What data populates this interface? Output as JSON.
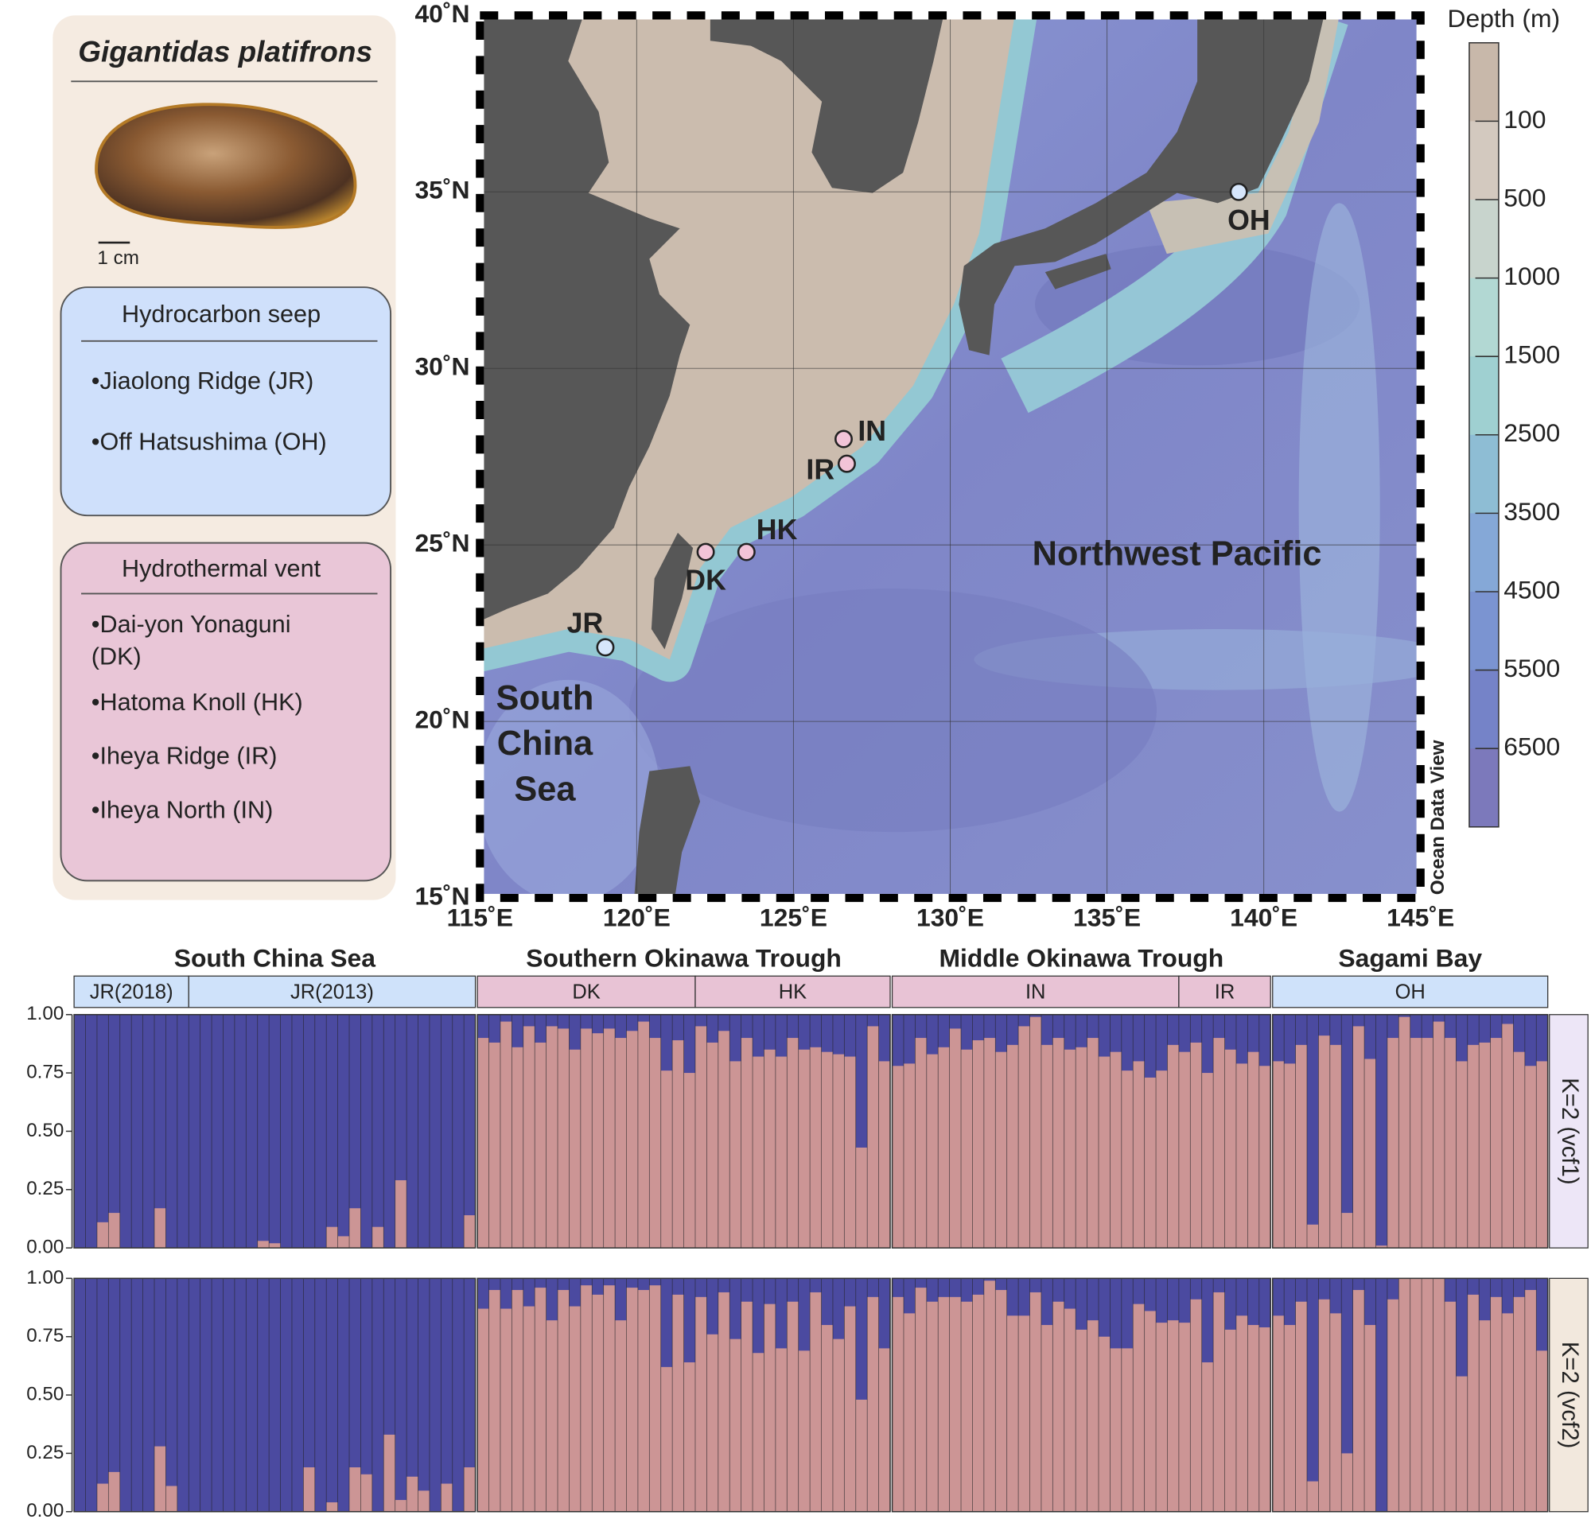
{
  "legend_panel": {
    "species": "Gigantidas platifrons",
    "scale_label": "1 cm",
    "groups": [
      {
        "title": "Hydrocarbon seep",
        "color": "#cfe0fb",
        "items": [
          "•Jiaolong Ridge (JR)",
          "•Off Hatsushima (OH)"
        ]
      },
      {
        "title": "Hydrothermal vent",
        "color": "#e9c6d7",
        "items": [
          "•Dai-yon Yonaguni (DK)",
          "•Hatoma Knoll (HK)",
          "•Iheya Ridge (IR)",
          "•Iheya North (IN)"
        ]
      }
    ]
  },
  "chart_data": [
    {
      "type": "map",
      "xlim": [
        115,
        145
      ],
      "ylim": [
        15,
        40
      ],
      "xticks": [
        {
          "value": 115,
          "label": "115˚E"
        },
        {
          "value": 120,
          "label": "120˚E"
        },
        {
          "value": 125,
          "label": "125˚E"
        },
        {
          "value": 130,
          "label": "130˚E"
        },
        {
          "value": 135,
          "label": "135˚E"
        },
        {
          "value": 140,
          "label": "140˚E"
        },
        {
          "value": 145,
          "label": "145˚E"
        }
      ],
      "yticks": [
        {
          "value": 15,
          "label": "15˚N"
        },
        {
          "value": 20,
          "label": "20˚N"
        },
        {
          "value": 25,
          "label": "25˚N"
        },
        {
          "value": 30,
          "label": "30˚N"
        },
        {
          "value": 35,
          "label": "35˚N"
        },
        {
          "value": 40,
          "label": "40˚N"
        }
      ],
      "grid": true,
      "sites": [
        {
          "label": "JR",
          "lon": 119.0,
          "lat": 22.1,
          "color": "#d6e6fb"
        },
        {
          "label": "DK",
          "lon": 122.2,
          "lat": 24.8,
          "color": "#f2c4d8"
        },
        {
          "label": "HK",
          "lon": 123.5,
          "lat": 24.8,
          "color": "#f2c4d8"
        },
        {
          "label": "IR",
          "lon": 126.7,
          "lat": 27.3,
          "color": "#f2c4d8"
        },
        {
          "label": "IN",
          "lon": 126.6,
          "lat": 28.0,
          "color": "#f2c4d8"
        },
        {
          "label": "OH",
          "lon": 139.2,
          "lat": 35.0,
          "color": "#d6e6fb"
        }
      ],
      "annotations": [
        {
          "lines": [
            "South",
            "China",
            "Sea"
          ]
        },
        {
          "lines": [
            "Northwest Pacific"
          ]
        }
      ],
      "credit": "Ocean Data View",
      "colorbar": {
        "title": "Depth (m)",
        "ticks": [
          100,
          500,
          1000,
          1500,
          2500,
          3500,
          4500,
          5500,
          6500
        ],
        "colors": [
          "#c8b8aa",
          "#d3c9bf",
          "#c8d4cd",
          "#b2d8d3",
          "#9fd0d1",
          "#8ebdd4",
          "#85a8d7",
          "#7b94d1",
          "#7583c8",
          "#7c79bb"
        ]
      }
    },
    {
      "type": "structure",
      "ylim": [
        0,
        1
      ],
      "yticks": [
        {
          "value": 0,
          "label": "0.00"
        },
        0.25,
        {
          "value": 0.5,
          "label": "0.50"
        },
        0.75,
        {
          "value": 1,
          "label": "1.00"
        }
      ],
      "base_color": "#4b4aa0",
      "bar_color": "#cc9595",
      "regions": [
        {
          "name": "South China Sea",
          "populations": [
            {
              "label": "JR(2018)",
              "color": "#cfe2fa"
            },
            {
              "label": "JR(2013)",
              "color": "#cfe2fa"
            }
          ]
        },
        {
          "name": "Southern Okinawa Trough",
          "populations": [
            {
              "label": "DK",
              "color": "#e8c3d5"
            },
            {
              "label": "HK",
              "color": "#e8c3d5"
            }
          ]
        },
        {
          "name": "Middle Okinawa Trough",
          "populations": [
            {
              "label": "IN",
              "color": "#e8c3d5"
            },
            {
              "label": "IR",
              "color": "#e8c3d5"
            }
          ]
        },
        {
          "name": "Sagami Bay",
          "populations": [
            {
              "label": "OH",
              "color": "#cfe2fa"
            }
          ]
        }
      ],
      "panels": [
        {
          "label": "K=2 (vcf1)",
          "color": "#ede6f7",
          "values": [
            [
              0,
              0,
              0.11,
              0.15,
              0,
              0,
              0,
              0.17,
              0,
              0
            ],
            [
              0,
              0,
              0,
              0,
              0,
              0,
              0.03,
              0.02,
              0,
              0,
              0,
              0,
              0.09,
              0.05,
              0.17,
              0,
              0.09,
              0,
              0.29,
              0,
              0,
              0,
              0,
              0,
              0.14
            ],
            [
              0.9,
              0.88,
              0.97,
              0.86,
              0.95,
              0.88,
              0.95,
              0.94,
              0.85,
              0.94,
              0.92,
              0.94,
              0.9,
              0.93,
              0.97,
              0.9,
              0.76,
              0.89,
              0.75
            ],
            [
              0.95,
              0.88,
              0.93,
              0.8,
              0.9,
              0.82,
              0.85,
              0.82,
              0.9,
              0.85,
              0.86,
              0.84,
              0.83,
              0.82,
              0.43,
              0.95,
              0.8
            ],
            [
              0.78,
              0.79,
              0.9,
              0.83,
              0.86,
              0.94,
              0.85,
              0.89,
              0.9,
              0.84,
              0.87,
              0.95,
              0.99,
              0.87,
              0.9,
              0.85,
              0.86,
              0.9,
              0.82,
              0.84,
              0.76,
              0.8,
              0.73,
              0.76,
              0.87
            ],
            [
              0.84,
              0.88,
              0.75,
              0.9,
              0.85,
              0.79,
              0.84,
              0.78
            ],
            [
              0.8,
              0.79,
              0.87,
              0.1,
              0.91,
              0.87,
              0.15,
              0.95,
              0.81,
              0.01,
              0.9,
              0.99,
              0.9,
              0.9,
              0.97,
              0.9,
              0.8,
              0.87,
              0.88,
              0.9,
              0.96,
              0.84,
              0.78,
              0.8
            ]
          ]
        },
        {
          "label": "K=2 (vcf2)",
          "color": "#f2e8dd",
          "values": [
            [
              0,
              0,
              0.12,
              0.17,
              0,
              0,
              0,
              0.28,
              0.11,
              0
            ],
            [
              0,
              0,
              0,
              0,
              0,
              0,
              0,
              0,
              0,
              0,
              0.19,
              0,
              0.04,
              0,
              0.19,
              0.16,
              0,
              0.33,
              0.05,
              0.15,
              0.09,
              0,
              0.12,
              0,
              0.19
            ],
            [
              0.87,
              0.95,
              0.87,
              0.95,
              0.88,
              0.96,
              0.82,
              0.95,
              0.88,
              0.97,
              0.93,
              0.97,
              0.82,
              0.96,
              0.95,
              0.97,
              0.62,
              0.93,
              0.64
            ],
            [
              0.92,
              0.76,
              0.94,
              0.74,
              0.9,
              0.68,
              0.89,
              0.7,
              0.9,
              0.69,
              0.94,
              0.8,
              0.74,
              0.88,
              0.48,
              0.92,
              0.7
            ],
            [
              0.92,
              0.85,
              0.96,
              0.9,
              0.92,
              0.92,
              0.9,
              0.93,
              0.99,
              0.95,
              0.84,
              0.84,
              0.94,
              0.8,
              0.9,
              0.87,
              0.78,
              0.82,
              0.75,
              0.7,
              0.7,
              0.89,
              0.86,
              0.81,
              0.82
            ],
            [
              0.81,
              0.91,
              0.64,
              0.94,
              0.78,
              0.84,
              0.8,
              0.79
            ],
            [
              0.84,
              0.8,
              0.9,
              0.13,
              0.91,
              0.85,
              0.25,
              0.95,
              0.8,
              0,
              0.91,
              1,
              1,
              1,
              1,
              0.9,
              0.58,
              0.93,
              0.82,
              0.92,
              0.85,
              0.92,
              0.95,
              0.69
            ]
          ]
        }
      ]
    }
  ]
}
